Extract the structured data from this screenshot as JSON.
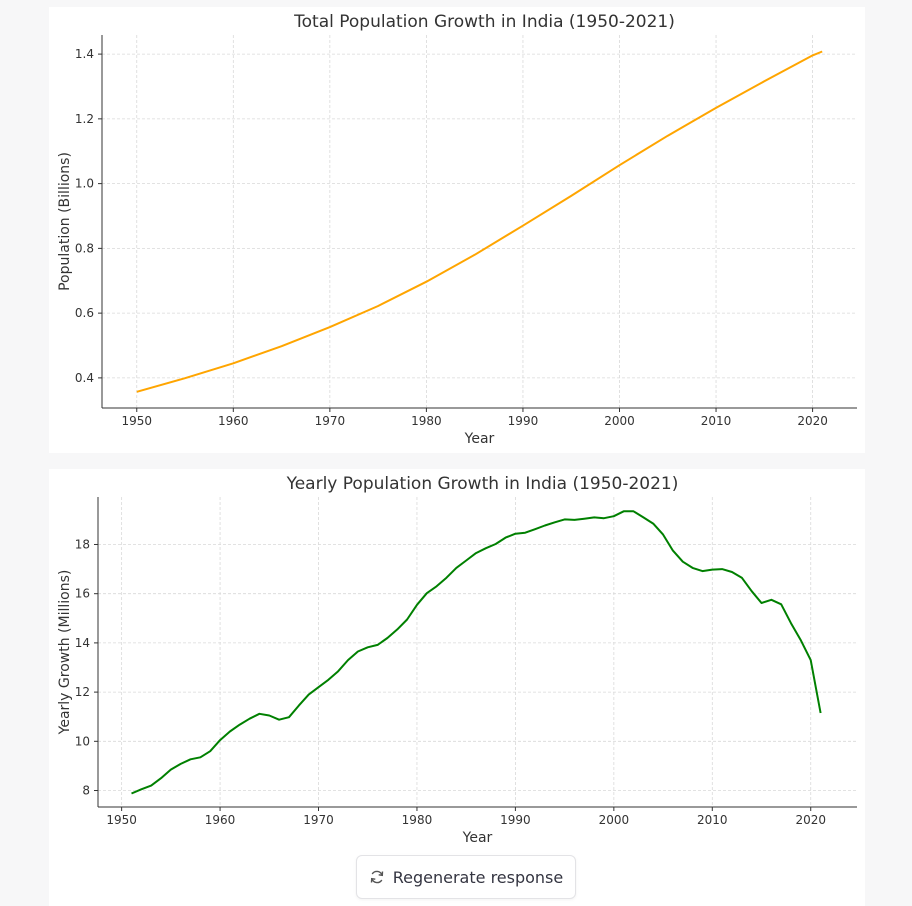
{
  "regenerate_button": {
    "label": "Regenerate response",
    "icon": "refresh-icon"
  },
  "chart_data": [
    {
      "type": "line",
      "title": "Total Population Growth in India (1950-2021)",
      "xlabel": "Year",
      "ylabel": "Population (Billions)",
      "xlim": [
        1946.4,
        2024.6
      ],
      "ylim": [
        0.307,
        1.459
      ],
      "xticks": [
        1950,
        1960,
        1970,
        1980,
        1990,
        2000,
        2010,
        2020
      ],
      "yticks": [
        0.4,
        0.6,
        0.8,
        1.0,
        1.2,
        1.4
      ],
      "ytick_labels": [
        "0.4",
        "0.6",
        "0.8",
        "1.0",
        "1.2",
        "1.4"
      ],
      "grid": true,
      "color": "#ffa500",
      "x": [
        1950,
        1955,
        1960,
        1965,
        1970,
        1975,
        1980,
        1985,
        1990,
        1995,
        2000,
        2005,
        2010,
        2015,
        2020,
        2021
      ],
      "y": [
        0.357,
        0.399,
        0.445,
        0.498,
        0.557,
        0.622,
        0.697,
        0.78,
        0.87,
        0.962,
        1.057,
        1.148,
        1.234,
        1.316,
        1.396,
        1.408
      ]
    },
    {
      "type": "line",
      "title": "Yearly Population Growth in India (1950-2021)",
      "xlabel": "Year",
      "ylabel": "Yearly Growth (Millions)",
      "xlim": [
        1947.6,
        2024.7
      ],
      "ylim": [
        7.33,
        19.93
      ],
      "xticks": [
        1950,
        1960,
        1970,
        1980,
        1990,
        2000,
        2010,
        2020
      ],
      "yticks": [
        8,
        10,
        12,
        14,
        16,
        18
      ],
      "ytick_labels": [
        "8",
        "10",
        "12",
        "14",
        "16",
        "18"
      ],
      "grid": true,
      "color": "#008000",
      "x_start": 1951,
      "y": [
        7.88,
        8.05,
        8.2,
        8.5,
        8.85,
        9.08,
        9.27,
        9.35,
        9.6,
        10.05,
        10.4,
        10.68,
        10.92,
        11.12,
        11.05,
        10.88,
        10.98,
        11.45,
        11.9,
        12.2,
        12.5,
        12.85,
        13.3,
        13.65,
        13.82,
        13.92,
        14.2,
        14.55,
        14.95,
        15.55,
        16.02,
        16.3,
        16.65,
        17.05,
        17.35,
        17.65,
        17.85,
        18.02,
        18.28,
        18.44,
        18.48,
        18.62,
        18.77,
        18.9,
        19.02,
        19.0,
        19.05,
        19.1,
        19.07,
        19.15,
        19.35,
        19.35,
        19.1,
        18.85,
        18.4,
        17.75,
        17.3,
        17.05,
        16.92,
        16.98,
        17.0,
        16.88,
        16.65,
        16.1,
        15.62,
        15.75,
        15.57,
        14.8,
        14.1,
        13.3,
        11.15
      ]
    }
  ]
}
